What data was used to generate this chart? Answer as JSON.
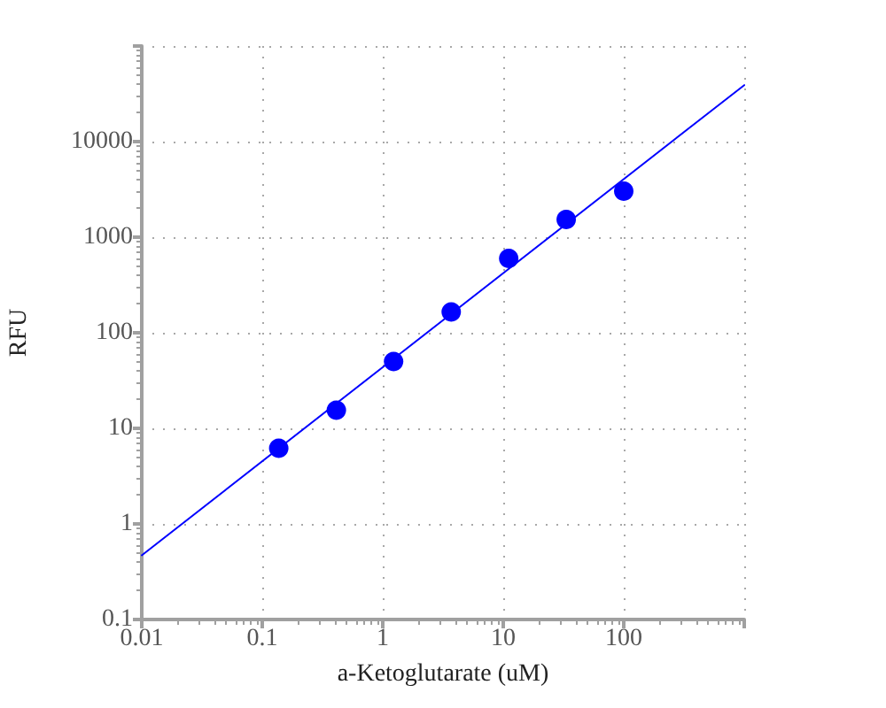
{
  "chart_data": {
    "type": "scatter",
    "xlabel": "a-Ketoglutarate (uM)",
    "ylabel": "RFU",
    "log": "xy",
    "xlim": [
      0.01,
      1000
    ],
    "ylim": [
      0.1,
      100000
    ],
    "xticks": [
      0.01,
      0.1,
      1,
      10,
      100,
      {
        "value": 1000,
        "label": null
      }
    ],
    "yticks": [
      0.1,
      1,
      10,
      100,
      1000,
      10000,
      {
        "value": 100000,
        "label": null
      }
    ],
    "grid": true,
    "series": [
      {
        "type": "scatter",
        "color": "#0000ff",
        "marker": "circle",
        "x": [
          0.137,
          0.412,
          1.23,
          3.7,
          11.1,
          33.3,
          100
        ],
        "values": [
          6.2,
          15.5,
          50,
          165,
          600,
          1530,
          3030
        ]
      },
      {
        "type": "line",
        "color": "#0000ff",
        "marker": "none",
        "x": [
          0.01,
          1000
        ],
        "values": [
          0.47,
          39000
        ]
      }
    ]
  }
}
